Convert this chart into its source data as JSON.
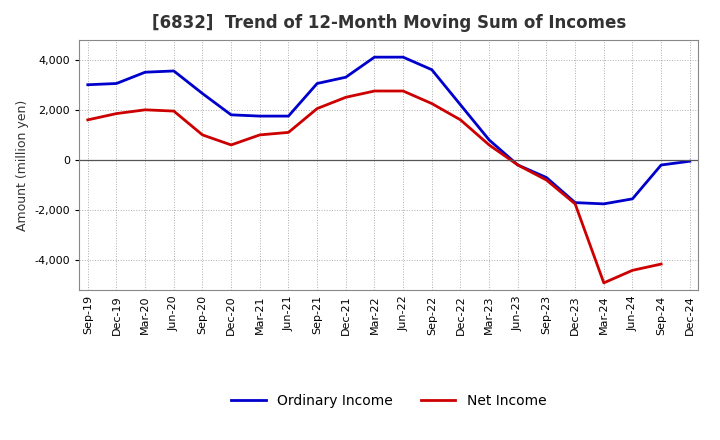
{
  "title": "[6832]  Trend of 12-Month Moving Sum of Incomes",
  "ylabel": "Amount (million yen)",
  "ylim": [
    -5200,
    4800
  ],
  "yticks": [
    -4000,
    -2000,
    0,
    2000,
    4000
  ],
  "x_labels": [
    "Sep-19",
    "Dec-19",
    "Mar-20",
    "Jun-20",
    "Sep-20",
    "Dec-20",
    "Mar-21",
    "Jun-21",
    "Sep-21",
    "Dec-21",
    "Mar-22",
    "Jun-22",
    "Sep-22",
    "Dec-22",
    "Mar-23",
    "Jun-23",
    "Sep-23",
    "Dec-23",
    "Mar-24",
    "Jun-24",
    "Sep-24",
    "Dec-24"
  ],
  "ordinary_income": [
    3000,
    3050,
    3500,
    3550,
    2650,
    1800,
    1750,
    1750,
    3050,
    3300,
    4100,
    4100,
    3600,
    2200,
    800,
    -200,
    -700,
    -1700,
    -1750,
    -1550,
    -200,
    -50
  ],
  "net_income": [
    1600,
    1850,
    2000,
    1950,
    1000,
    600,
    1000,
    1100,
    2050,
    2500,
    2750,
    2750,
    2250,
    1600,
    600,
    -200,
    -800,
    -1750,
    -4900,
    -4400,
    -4150,
    null
  ],
  "ordinary_color": "#0000cc",
  "net_color": "#cc0000",
  "background_color": "#FFFFFF",
  "grid_color": "#999999",
  "title_fontsize": 12,
  "title_color": "#333333",
  "legend_fontsize": 10,
  "tick_fontsize": 8,
  "ylabel_fontsize": 9
}
